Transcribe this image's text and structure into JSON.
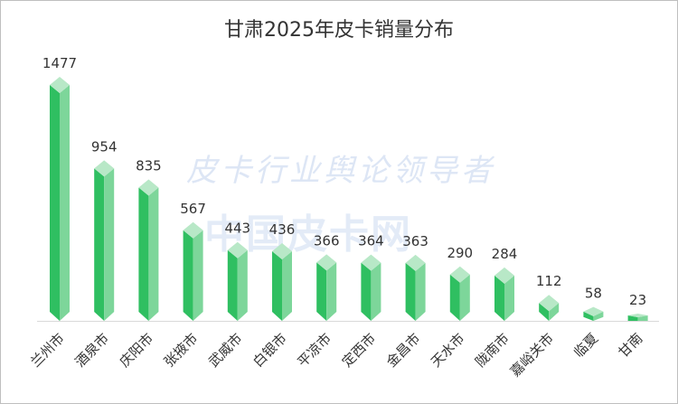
{
  "watermark": {
    "line1": "皮卡行业舆论领导者",
    "line2": "中国皮卡网"
  },
  "chart_data": {
    "type": "bar",
    "title": "甘肃2025年皮卡销量分布",
    "xlabel": "",
    "ylabel": "",
    "categories": [
      "兰州市",
      "酒泉市",
      "庆阳市",
      "张掖市",
      "武威市",
      "白银市",
      "平凉市",
      "定西市",
      "金昌市",
      "天水市",
      "陇南市",
      "嘉峪关市",
      "临夏",
      "甘南"
    ],
    "values": [
      1477,
      954,
      835,
      567,
      443,
      436,
      366,
      364,
      363,
      290,
      284,
      112,
      58,
      23
    ],
    "ylim": [
      0,
      1500
    ],
    "grid": false,
    "colors": {
      "front": "#2fbf61",
      "side": "#7dd69a",
      "top": "#b8e8c7",
      "axis": "#d9d9d9",
      "label": "#333333"
    }
  }
}
